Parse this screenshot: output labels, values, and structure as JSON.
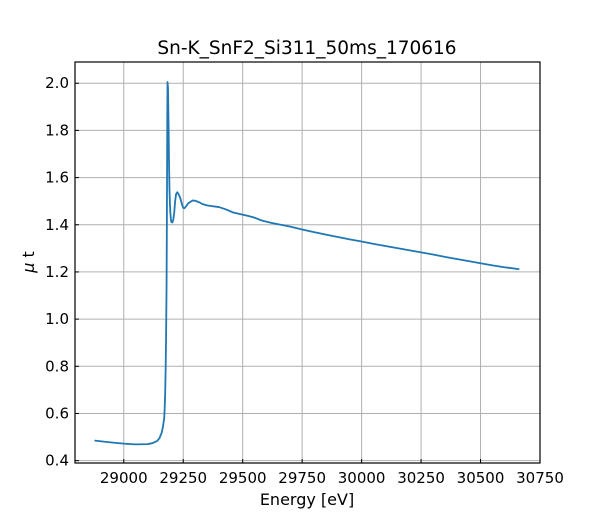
{
  "chart_data": {
    "type": "line",
    "title": "Sn-K_SnF2_Si311_50ms_170616",
    "xlabel": "Energy [eV]",
    "ylabel_symbol": "μ",
    "ylabel_var": "t",
    "xlim": [
      28795,
      30750
    ],
    "ylim": [
      0.39,
      2.09
    ],
    "xticks": [
      29000,
      29250,
      29500,
      29750,
      30000,
      30250,
      30500,
      30750
    ],
    "yticks": [
      0.4,
      0.6,
      0.8,
      1.0,
      1.2,
      1.4,
      1.6,
      1.8,
      2.0
    ],
    "xtick_labels": [
      "29000",
      "29250",
      "29500",
      "29750",
      "30000",
      "30250",
      "30500",
      "30750"
    ],
    "ytick_labels": [
      "0.4",
      "0.6",
      "0.8",
      "1.0",
      "1.2",
      "1.4",
      "1.6",
      "1.8",
      "2.0"
    ],
    "grid": true,
    "line_color": "#1f77b4",
    "series": [
      {
        "x": [
          28880,
          28920,
          28960,
          29000,
          29050,
          29100,
          29120,
          29140,
          29150,
          29160,
          29165,
          29170,
          29172,
          29174,
          29176,
          29178,
          29180,
          29181,
          29182,
          29183,
          29184,
          29186,
          29188,
          29190,
          29192,
          29194,
          29196,
          29198,
          29200,
          29204,
          29208,
          29212,
          29216,
          29220,
          29225,
          29230,
          29235,
          29240,
          29245,
          29250,
          29255,
          29260,
          29265,
          29270,
          29280,
          29290,
          29300,
          29310,
          29320,
          29330,
          29350,
          29370,
          29400,
          29430,
          29460,
          29490,
          29520,
          29550,
          29580,
          29620,
          29660,
          29700,
          29750,
          29800,
          29850,
          29900,
          29950,
          30000,
          30050,
          30100,
          30150,
          30200,
          30250,
          30300,
          30350,
          30400,
          30450,
          30500,
          30550,
          30600,
          30660
        ],
        "y": [
          0.485,
          0.48,
          0.476,
          0.472,
          0.469,
          0.47,
          0.474,
          0.483,
          0.495,
          0.52,
          0.545,
          0.58,
          0.62,
          0.68,
          0.78,
          0.93,
          1.15,
          1.35,
          1.6,
          1.85,
          2.005,
          1.98,
          1.85,
          1.68,
          1.56,
          1.49,
          1.45,
          1.425,
          1.412,
          1.41,
          1.42,
          1.45,
          1.5,
          1.53,
          1.538,
          1.53,
          1.52,
          1.505,
          1.485,
          1.472,
          1.47,
          1.476,
          1.482,
          1.49,
          1.497,
          1.503,
          1.502,
          1.498,
          1.494,
          1.488,
          1.482,
          1.479,
          1.475,
          1.465,
          1.452,
          1.445,
          1.438,
          1.43,
          1.418,
          1.408,
          1.4,
          1.392,
          1.38,
          1.369,
          1.358,
          1.348,
          1.338,
          1.329,
          1.319,
          1.31,
          1.301,
          1.292,
          1.283,
          1.274,
          1.264,
          1.255,
          1.246,
          1.237,
          1.228,
          1.22,
          1.212
        ]
      }
    ]
  }
}
